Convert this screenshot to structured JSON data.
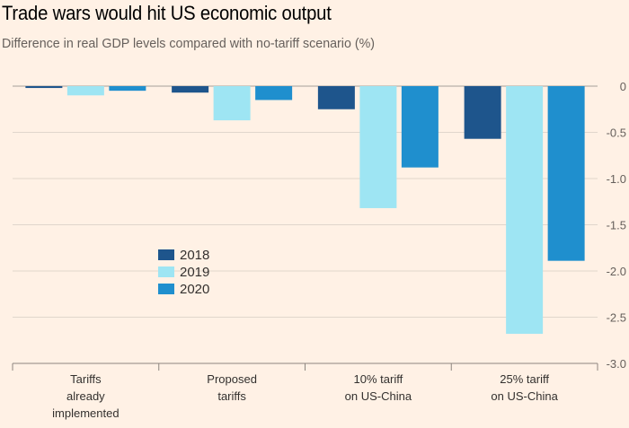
{
  "title": "Trade wars would hit US economic output",
  "subtitle": "Difference in real GDP levels compared with no-tariff scenario (%)",
  "colors": {
    "background": "#fff1e5",
    "grid": "#e0d6cc",
    "axis": "#66605c"
  },
  "chart_data": {
    "type": "bar",
    "title": "Trade wars would hit US economic output",
    "subtitle": "Difference in real GDP levels compared with no-tariff scenario (%)",
    "categories": [
      [
        "Tariffs",
        "already",
        "implemented"
      ],
      [
        "Proposed",
        "tariffs"
      ],
      [
        "10% tariff",
        "on US-China"
      ],
      [
        "25% tariff",
        "on US-China"
      ]
    ],
    "series": [
      {
        "name": "2018",
        "color": "#1e558c",
        "values": [
          -0.02,
          -0.07,
          -0.25,
          -0.57
        ]
      },
      {
        "name": "2019",
        "color": "#9ee5f3",
        "values": [
          -0.1,
          -0.37,
          -1.32,
          -2.68
        ]
      },
      {
        "name": "2020",
        "color": "#1f8fce",
        "values": [
          -0.05,
          -0.15,
          -0.88,
          -1.89
        ]
      }
    ],
    "ylim": [
      -3.0,
      0
    ],
    "yticks": [
      0,
      -0.5,
      -1.0,
      -1.5,
      -2.0,
      -2.5,
      -3.0
    ],
    "ytick_labels": [
      "0",
      "-0.5",
      "-1.0",
      "-1.5",
      "-2.0",
      "-2.5",
      "-3.0"
    ],
    "y_axis_side": "right",
    "grid": true,
    "legend_position": "center-left"
  }
}
